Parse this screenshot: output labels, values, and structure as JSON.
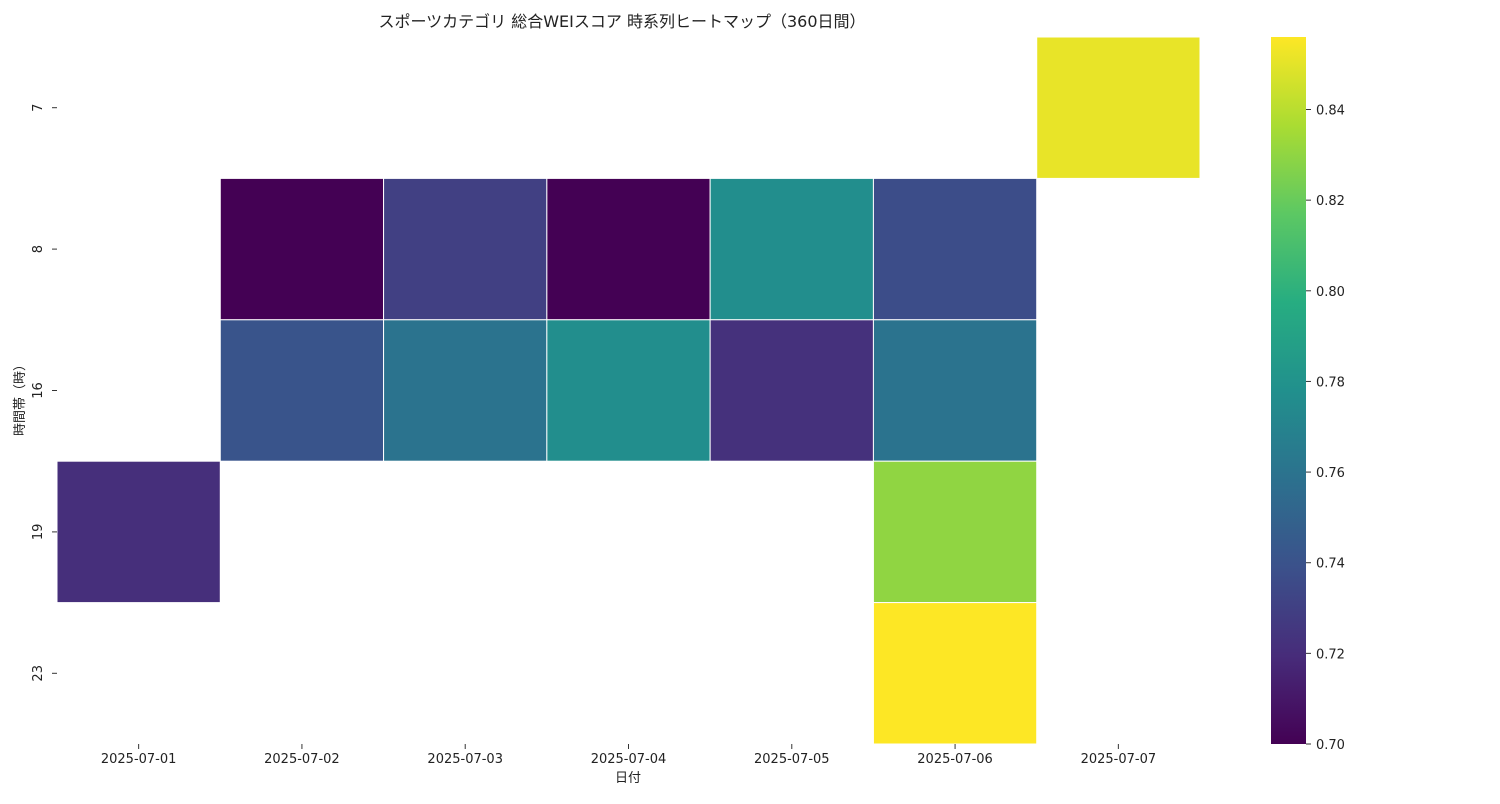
{
  "chart_data": {
    "type": "heatmap",
    "title": "スポーツカテゴリ 総合WEIスコア 時系列ヒートマップ（360日間）",
    "xlabel": "日付",
    "ylabel": "時間帯（時）",
    "x_categories": [
      "2025-07-01",
      "2025-07-02",
      "2025-07-03",
      "2025-07-04",
      "2025-07-05",
      "2025-07-06",
      "2025-07-07"
    ],
    "y_categories": [
      "7",
      "8",
      "16",
      "19",
      "23"
    ],
    "cells": [
      {
        "x": "2025-07-07",
        "y": "7",
        "value": 0.851
      },
      {
        "x": "2025-07-02",
        "y": "8",
        "value": 0.7
      },
      {
        "x": "2025-07-03",
        "y": "8",
        "value": 0.73
      },
      {
        "x": "2025-07-04",
        "y": "8",
        "value": 0.7
      },
      {
        "x": "2025-07-05",
        "y": "8",
        "value": 0.777
      },
      {
        "x": "2025-07-06",
        "y": "8",
        "value": 0.737
      },
      {
        "x": "2025-07-02",
        "y": "16",
        "value": 0.741
      },
      {
        "x": "2025-07-03",
        "y": "16",
        "value": 0.76
      },
      {
        "x": "2025-07-04",
        "y": "16",
        "value": 0.777
      },
      {
        "x": "2025-07-05",
        "y": "16",
        "value": 0.722
      },
      {
        "x": "2025-07-06",
        "y": "16",
        "value": 0.76
      },
      {
        "x": "2025-07-01",
        "y": "19",
        "value": 0.721
      },
      {
        "x": "2025-07-06",
        "y": "19",
        "value": 0.83
      },
      {
        "x": "2025-07-06",
        "y": "23",
        "value": 0.856
      }
    ],
    "colorbar": {
      "colormap": "viridis",
      "min": 0.7,
      "max": 0.856,
      "ticks": [
        "0.70",
        "0.72",
        "0.74",
        "0.76",
        "0.78",
        "0.80",
        "0.82",
        "0.84"
      ]
    },
    "grid": false,
    "legend": "none",
    "cell_border_color": "#ffffff"
  }
}
